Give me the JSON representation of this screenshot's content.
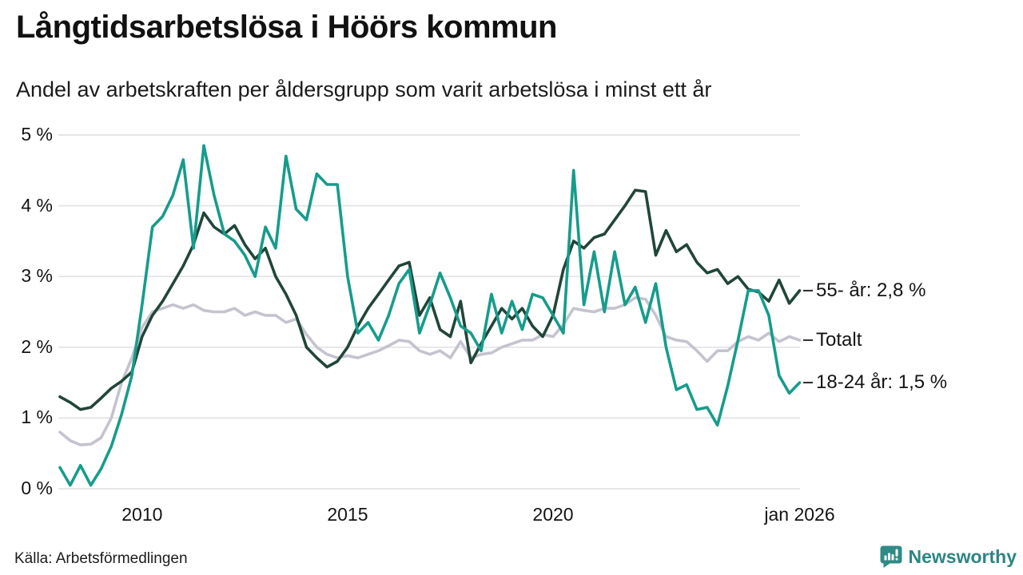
{
  "header": {
    "title": "Långtidsarbetslösa i Höörs kommun",
    "subtitle": "Andel av arbetskraften per åldersgrupp som varit arbetslösa i minst ett år"
  },
  "footer": {
    "source": "Källa: Arbetsförmedlingen",
    "brand": "Newsworthy"
  },
  "colors": {
    "series_55": "#214639",
    "series_total": "#c4c3ce",
    "series_1824": "#169c8b",
    "grid": "#e3e3e6",
    "label_dash": "#2b2b2b",
    "text": "#141414",
    "brand_teal": "#2f8b85"
  },
  "chart_data": {
    "type": "line",
    "title": "Långtidsarbetslösa i Höörs kommun",
    "subtitle": "Andel av arbetskraften per åldersgrupp som varit arbetslösa i minst ett år",
    "xlabel": "",
    "ylabel": "%",
    "grid": true,
    "xlim": [
      2008,
      2026.1
    ],
    "ylim": [
      0,
      5
    ],
    "legend_position": "right-end-labels",
    "x_ticks": [
      {
        "value": 2010,
        "label": "2010"
      },
      {
        "value": 2015,
        "label": "2015"
      },
      {
        "value": 2020,
        "label": "2020"
      },
      {
        "value": 2026,
        "label": "jan 2026"
      }
    ],
    "y_ticks": [
      {
        "value": 0,
        "label": "0 %"
      },
      {
        "value": 1,
        "label": "1 %"
      },
      {
        "value": 2,
        "label": "2 %"
      },
      {
        "value": 3,
        "label": "3 %"
      },
      {
        "value": 4,
        "label": "4 %"
      },
      {
        "value": 5,
        "label": "5 %"
      }
    ],
    "x": [
      2008,
      2008.25,
      2008.5,
      2008.75,
      2009,
      2009.25,
      2009.5,
      2009.75,
      2010,
      2010.25,
      2010.5,
      2010.75,
      2011,
      2011.25,
      2011.5,
      2011.75,
      2012,
      2012.25,
      2012.5,
      2012.75,
      2013,
      2013.25,
      2013.5,
      2013.75,
      2014,
      2014.25,
      2014.5,
      2014.75,
      2015,
      2015.25,
      2015.5,
      2015.75,
      2016,
      2016.25,
      2016.5,
      2016.75,
      2017,
      2017.25,
      2017.5,
      2017.75,
      2018,
      2018.25,
      2018.5,
      2018.75,
      2019,
      2019.25,
      2019.5,
      2019.75,
      2020,
      2020.25,
      2020.5,
      2020.75,
      2021,
      2021.25,
      2021.5,
      2021.75,
      2022,
      2022.25,
      2022.5,
      2022.75,
      2023,
      2023.25,
      2023.5,
      2023.75,
      2024,
      2024.25,
      2024.5,
      2024.75,
      2025,
      2025.25,
      2025.5,
      2025.75,
      2026
    ],
    "series": [
      {
        "name": "55- år",
        "end_label": "55- år: 2,8 %",
        "latest_value": "2,8 %",
        "color": "#214639",
        "values": [
          1.3,
          1.22,
          1.12,
          1.15,
          1.28,
          1.42,
          1.52,
          1.65,
          2.15,
          2.45,
          2.65,
          2.9,
          3.15,
          3.45,
          3.9,
          3.7,
          3.6,
          3.72,
          3.45,
          3.25,
          3.4,
          3.0,
          2.75,
          2.45,
          2.0,
          1.85,
          1.72,
          1.8,
          2.0,
          2.3,
          2.55,
          2.75,
          2.95,
          3.15,
          3.2,
          2.45,
          2.7,
          2.25,
          2.15,
          2.65,
          1.78,
          2.05,
          2.3,
          2.55,
          2.4,
          2.55,
          2.3,
          2.15,
          2.45,
          3.1,
          3.5,
          3.4,
          3.55,
          3.6,
          3.8,
          4.0,
          4.22,
          4.2,
          3.3,
          3.65,
          3.35,
          3.45,
          3.2,
          3.05,
          3.1,
          2.9,
          3.0,
          2.82,
          2.78,
          2.65,
          2.95,
          2.62,
          2.8
        ]
      },
      {
        "name": "Totalt",
        "end_label": "Totalt",
        "latest_value": "2,1 %",
        "color": "#c4c3ce",
        "values": [
          0.8,
          0.68,
          0.62,
          0.63,
          0.72,
          1.0,
          1.5,
          1.85,
          2.28,
          2.5,
          2.55,
          2.6,
          2.55,
          2.6,
          2.52,
          2.5,
          2.5,
          2.55,
          2.45,
          2.5,
          2.45,
          2.45,
          2.35,
          2.4,
          2.18,
          2.0,
          1.9,
          1.85,
          1.88,
          1.85,
          1.9,
          1.95,
          2.02,
          2.1,
          2.08,
          1.95,
          1.9,
          1.95,
          1.85,
          2.08,
          1.85,
          1.9,
          1.92,
          2.0,
          2.05,
          2.1,
          2.1,
          2.18,
          2.15,
          2.32,
          2.55,
          2.52,
          2.5,
          2.55,
          2.55,
          2.6,
          2.7,
          2.68,
          2.45,
          2.15,
          2.1,
          2.08,
          1.95,
          1.8,
          1.95,
          1.95,
          2.08,
          2.15,
          2.1,
          2.2,
          2.08,
          2.15,
          2.1
        ]
      },
      {
        "name": "18-24 år",
        "end_label": "18-24 år: 1,5 %",
        "latest_value": "1,5 %",
        "color": "#169c8b",
        "values": [
          0.3,
          0.05,
          0.33,
          0.05,
          0.28,
          0.6,
          1.05,
          1.6,
          2.6,
          3.7,
          3.85,
          4.15,
          4.65,
          3.4,
          4.85,
          4.15,
          3.6,
          3.5,
          3.3,
          3.0,
          3.7,
          3.4,
          4.7,
          3.95,
          3.8,
          4.45,
          4.3,
          4.3,
          3.0,
          2.2,
          2.35,
          2.1,
          2.45,
          2.9,
          3.1,
          2.2,
          2.6,
          3.05,
          2.7,
          2.3,
          2.2,
          1.95,
          2.75,
          2.2,
          2.65,
          2.25,
          2.75,
          2.7,
          2.45,
          2.2,
          4.5,
          2.6,
          3.35,
          2.5,
          3.35,
          2.6,
          2.85,
          2.35,
          2.9,
          2.0,
          1.4,
          1.47,
          1.12,
          1.15,
          0.9,
          1.45,
          2.1,
          2.8,
          2.8,
          2.45,
          1.6,
          1.35,
          1.5
        ]
      }
    ]
  }
}
